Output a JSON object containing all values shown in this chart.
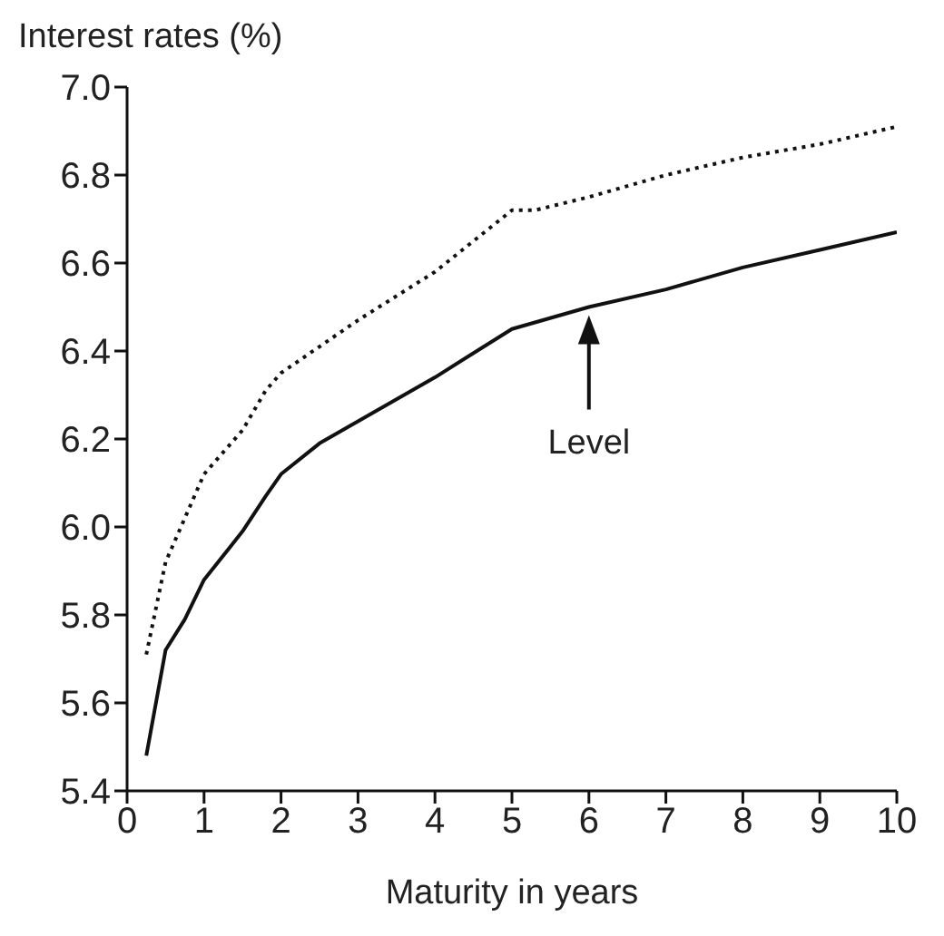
{
  "chart_data": {
    "type": "line",
    "ylabel": "Interest rates (%)",
    "xlabel": "Maturity in years",
    "xlim": [
      0,
      10
    ],
    "xticks": [
      0,
      1,
      2,
      3,
      4,
      5,
      6,
      7,
      8,
      9,
      10
    ],
    "ylim": [
      5.4,
      7.0
    ],
    "yticks": [
      {
        "value": 5.4,
        "label": "5.4"
      },
      {
        "value": 5.6,
        "label": "5.6"
      },
      {
        "value": 5.8,
        "label": "5.8"
      },
      {
        "value": 6,
        "label": "6.0"
      },
      {
        "value": 6.2,
        "label": "6.2"
      },
      {
        "value": 6.4,
        "label": "6.4"
      },
      {
        "value": 6.6,
        "label": "6.6"
      },
      {
        "value": 6.8,
        "label": "6.8"
      },
      {
        "value": 7,
        "label": "7.0"
      }
    ],
    "grid": false,
    "marker": "none",
    "annotations": [
      "Level"
    ],
    "series": [
      {
        "color": "#111111",
        "line_style": "solid",
        "x": [
          0.25,
          0.5,
          0.75,
          1,
          1.5,
          1.8,
          2,
          2.5,
          3,
          4,
          5,
          6,
          7,
          8,
          9,
          10
        ],
        "values": [
          5.48,
          5.72,
          5.79,
          5.88,
          5.99,
          6.07,
          6.12,
          6.19,
          6.24,
          6.34,
          6.45,
          6.5,
          6.54,
          6.59,
          6.63,
          6.67
        ]
      },
      {
        "color": "#111111",
        "line_style": "dotted",
        "x": [
          0.25,
          0.5,
          0.75,
          1,
          1.5,
          1.8,
          2,
          3,
          4,
          5,
          5.3,
          6,
          7,
          8,
          9,
          10
        ],
        "values": [
          5.71,
          5.92,
          6.02,
          6.12,
          6.22,
          6.31,
          6.35,
          6.47,
          6.58,
          6.72,
          6.72,
          6.75,
          6.8,
          6.84,
          6.87,
          6.91
        ]
      }
    ]
  }
}
